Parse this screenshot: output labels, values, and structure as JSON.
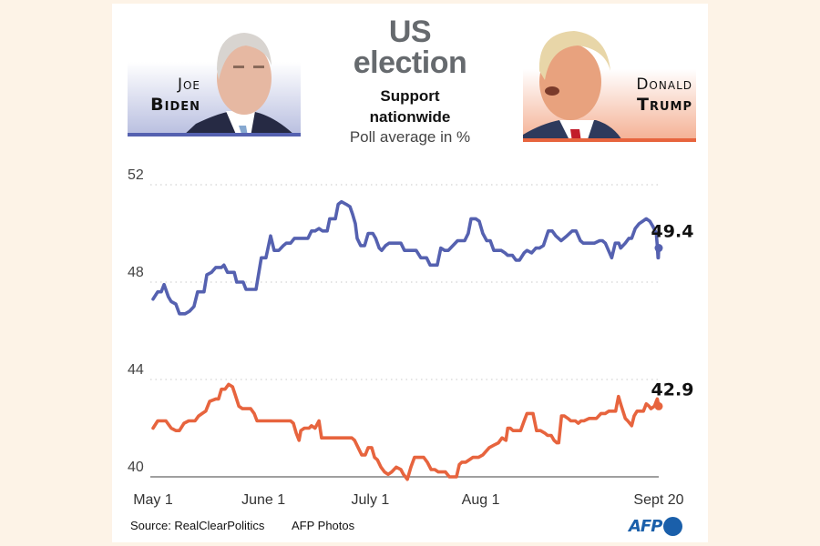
{
  "header": {
    "title_line1": "US",
    "title_line2": "election",
    "subtitle_line1": "Support",
    "subtitle_line2": "nationwide",
    "unit": "Poll average in %"
  },
  "candidates": {
    "biden": {
      "first": "Joe",
      "last": "Biden",
      "color": "#5561b0",
      "photo": "biden-portrait"
    },
    "trump": {
      "first": "Donald",
      "last": "Trump",
      "color": "#e7643e",
      "photo": "trump-portrait"
    }
  },
  "footer": {
    "source": "Source: RealClearPolitics",
    "photos": "AFP Photos",
    "logo": "AFP"
  },
  "chart_data": {
    "type": "line",
    "title": "US election — Support nationwide",
    "subtitle": "Poll average in %",
    "xlabel": "",
    "ylabel": "Poll average in %",
    "x_unit": "days since May 1",
    "x_range": [
      0,
      142
    ],
    "x_ticks": [
      {
        "day": 0,
        "label": "May 1"
      },
      {
        "day": 31,
        "label": "June 1"
      },
      {
        "day": 61,
        "label": "July 1"
      },
      {
        "day": 92,
        "label": "Aug 1"
      },
      {
        "day": 142,
        "label": "Sept 20"
      }
    ],
    "axis_breaks": true,
    "panels": [
      {
        "name": "Biden",
        "ylim": [
          46.5,
          52
        ],
        "y_ticks": [
          52,
          48
        ]
      },
      {
        "name": "Trump",
        "ylim": [
          40,
          44.5
        ],
        "y_ticks": [
          44,
          40
        ]
      }
    ],
    "grid": "dotted horizontal at ticks",
    "series": [
      {
        "name": "Joe Biden",
        "color": "#5561b0",
        "end_label": "49.4",
        "points": [
          [
            0,
            47.3
          ],
          [
            1.3,
            47.6
          ],
          [
            2.3,
            47.6
          ],
          [
            3.1,
            47.9
          ],
          [
            4.3,
            47.4
          ],
          [
            5.1,
            47.2
          ],
          [
            6.4,
            47.1
          ],
          [
            7.4,
            46.7
          ],
          [
            9.0,
            46.7
          ],
          [
            10.2,
            46.8
          ],
          [
            11.5,
            47.0
          ],
          [
            12.5,
            47.6
          ],
          [
            14.3,
            47.6
          ],
          [
            15.1,
            48.3
          ],
          [
            16.4,
            48.4
          ],
          [
            17.6,
            48.6
          ],
          [
            19.2,
            48.6
          ],
          [
            19.9,
            48.7
          ],
          [
            20.9,
            48.4
          ],
          [
            22.8,
            48.4
          ],
          [
            23.5,
            48.0
          ],
          [
            25.3,
            48.0
          ],
          [
            26.1,
            47.7
          ],
          [
            28.9,
            47.7
          ],
          [
            30.4,
            49.0
          ],
          [
            31.7,
            49.0
          ],
          [
            33.0,
            49.9
          ],
          [
            34.0,
            49.3
          ],
          [
            35.3,
            49.3
          ],
          [
            36.6,
            49.5
          ],
          [
            37.4,
            49.6
          ],
          [
            38.6,
            49.6
          ],
          [
            39.7,
            49.8
          ],
          [
            42.5,
            49.8
          ],
          [
            43.5,
            49.8
          ],
          [
            44.5,
            50.1
          ],
          [
            45.5,
            50.1
          ],
          [
            46.6,
            50.2
          ],
          [
            47.6,
            50.1
          ],
          [
            48.9,
            50.1
          ],
          [
            49.6,
            50.6
          ],
          [
            50.4,
            50.6
          ],
          [
            51.2,
            50.6
          ],
          [
            52.0,
            51.2
          ],
          [
            52.9,
            51.3
          ],
          [
            54.2,
            51.2
          ],
          [
            55.3,
            51.1
          ],
          [
            56.0,
            50.8
          ],
          [
            56.8,
            50.4
          ],
          [
            57.3,
            49.8
          ],
          [
            58.3,
            49.5
          ],
          [
            59.4,
            49.5
          ],
          [
            60.4,
            50.0
          ],
          [
            61.7,
            50.0
          ],
          [
            62.5,
            49.8
          ],
          [
            63.5,
            49.4
          ],
          [
            64.2,
            49.3
          ],
          [
            65.3,
            49.5
          ],
          [
            66.3,
            49.6
          ],
          [
            68.3,
            49.6
          ],
          [
            69.6,
            49.6
          ],
          [
            70.6,
            49.3
          ],
          [
            71.6,
            49.3
          ],
          [
            73.9,
            49.3
          ],
          [
            75.2,
            49.0
          ],
          [
            76.8,
            49.0
          ],
          [
            77.8,
            48.7
          ],
          [
            79.8,
            48.7
          ],
          [
            80.8,
            49.4
          ],
          [
            81.9,
            49.3
          ],
          [
            82.9,
            49.3
          ],
          [
            84.2,
            49.5
          ],
          [
            85.5,
            49.7
          ],
          [
            87.5,
            49.7
          ],
          [
            88.5,
            50.0
          ],
          [
            89.3,
            50.6
          ],
          [
            90.6,
            50.6
          ],
          [
            91.6,
            50.5
          ],
          [
            92.6,
            50.0
          ],
          [
            93.7,
            49.7
          ],
          [
            94.7,
            49.7
          ],
          [
            95.7,
            49.3
          ],
          [
            97.8,
            49.3
          ],
          [
            98.8,
            49.2
          ],
          [
            99.6,
            49.1
          ],
          [
            100.9,
            49.1
          ],
          [
            101.9,
            48.9
          ],
          [
            102.9,
            48.9
          ],
          [
            104.2,
            49.2
          ],
          [
            105.0,
            49.3
          ],
          [
            106.3,
            49.2
          ],
          [
            107.5,
            49.4
          ],
          [
            108.5,
            49.4
          ],
          [
            109.6,
            49.5
          ],
          [
            111.0,
            50.1
          ],
          [
            112.1,
            50.1
          ],
          [
            113.1,
            49.9
          ],
          [
            114.6,
            49.7
          ],
          [
            116.2,
            49.9
          ],
          [
            117.7,
            50.1
          ],
          [
            118.8,
            50.1
          ],
          [
            120.0,
            49.7
          ],
          [
            120.8,
            49.6
          ],
          [
            123.9,
            49.6
          ],
          [
            125.4,
            49.7
          ],
          [
            126.2,
            49.7
          ],
          [
            127.0,
            49.6
          ],
          [
            128.8,
            49.0
          ],
          [
            128.8,
            49.0
          ],
          [
            129.8,
            49.6
          ],
          [
            130.8,
            49.6
          ],
          [
            131.3,
            49.4
          ],
          [
            132.6,
            49.6
          ],
          [
            133.6,
            49.8
          ],
          [
            134.4,
            49.8
          ],
          [
            135.4,
            50.2
          ],
          [
            136.5,
            50.4
          ],
          [
            137.5,
            50.5
          ],
          [
            138.5,
            50.6
          ],
          [
            139.5,
            50.5
          ],
          [
            140.3,
            50.3
          ],
          [
            141.0,
            50.1
          ],
          [
            141.3,
            50.0
          ],
          [
            141.6,
            49.5
          ],
          [
            141.8,
            49.0
          ],
          [
            141.9,
            49.0
          ],
          [
            142.0,
            49.4
          ]
        ]
      },
      {
        "name": "Donald Trump",
        "color": "#e7643e",
        "end_label": "42.9",
        "points": [
          [
            0,
            42.0
          ],
          [
            1.3,
            42.3
          ],
          [
            2.3,
            42.3
          ],
          [
            3.6,
            42.3
          ],
          [
            5.1,
            42.0
          ],
          [
            6.4,
            41.9
          ],
          [
            7.4,
            41.9
          ],
          [
            8.7,
            42.2
          ],
          [
            10.0,
            42.3
          ],
          [
            11.8,
            42.3
          ],
          [
            12.8,
            42.5
          ],
          [
            13.8,
            42.6
          ],
          [
            14.8,
            42.7
          ],
          [
            15.9,
            43.1
          ],
          [
            17.6,
            43.2
          ],
          [
            18.4,
            43.2
          ],
          [
            19.2,
            43.6
          ],
          [
            20.2,
            43.6
          ],
          [
            21.2,
            43.8
          ],
          [
            22.3,
            43.7
          ],
          [
            23.0,
            43.4
          ],
          [
            24.1,
            42.9
          ],
          [
            25.1,
            42.8
          ],
          [
            26.4,
            42.8
          ],
          [
            27.4,
            42.8
          ],
          [
            28.4,
            42.6
          ],
          [
            29.2,
            42.3
          ],
          [
            33.0,
            42.3
          ],
          [
            37.6,
            42.3
          ],
          [
            38.6,
            42.3
          ],
          [
            39.4,
            42.2
          ],
          [
            40.2,
            41.8
          ],
          [
            41.0,
            41.5
          ],
          [
            41.5,
            41.9
          ],
          [
            42.5,
            42.0
          ],
          [
            43.8,
            42.0
          ],
          [
            44.5,
            42.1
          ],
          [
            45.5,
            42.0
          ],
          [
            46.6,
            42.3
          ],
          [
            47.3,
            41.6
          ],
          [
            48.1,
            41.6
          ],
          [
            49.9,
            41.6
          ],
          [
            55.8,
            41.6
          ],
          [
            56.6,
            41.5
          ],
          [
            57.6,
            41.2
          ],
          [
            58.6,
            40.9
          ],
          [
            59.6,
            40.9
          ],
          [
            60.4,
            41.2
          ],
          [
            61.4,
            41.2
          ],
          [
            62.2,
            40.8
          ],
          [
            63.0,
            40.7
          ],
          [
            64.0,
            40.4
          ],
          [
            65.0,
            40.2
          ],
          [
            66.0,
            40.1
          ],
          [
            67.0,
            40.2
          ],
          [
            68.3,
            40.4
          ],
          [
            69.6,
            40.3
          ],
          [
            70.3,
            40.1
          ],
          [
            71.4,
            39.9
          ],
          [
            72.4,
            40.4
          ],
          [
            73.4,
            40.8
          ],
          [
            74.4,
            40.8
          ],
          [
            76.0,
            40.8
          ],
          [
            77.0,
            40.6
          ],
          [
            78.1,
            40.3
          ],
          [
            79.1,
            40.3
          ],
          [
            80.1,
            40.2
          ],
          [
            81.1,
            40.2
          ],
          [
            82.1,
            40.2
          ],
          [
            83.2,
            40.0
          ],
          [
            84.2,
            40.0
          ],
          [
            85.2,
            40.0
          ],
          [
            86.0,
            40.5
          ],
          [
            86.7,
            40.6
          ],
          [
            87.8,
            40.6
          ],
          [
            88.8,
            40.7
          ],
          [
            89.8,
            40.8
          ],
          [
            91.4,
            40.8
          ],
          [
            92.6,
            40.9
          ],
          [
            94.4,
            41.2
          ],
          [
            95.7,
            41.3
          ],
          [
            97.0,
            41.4
          ],
          [
            98.0,
            41.6
          ],
          [
            99.1,
            41.5
          ],
          [
            99.6,
            42.0
          ],
          [
            100.3,
            42.0
          ],
          [
            101.1,
            41.9
          ],
          [
            103.2,
            41.9
          ],
          [
            104.2,
            42.3
          ],
          [
            105.0,
            42.6
          ],
          [
            106.7,
            42.6
          ],
          [
            107.7,
            41.9
          ],
          [
            108.8,
            41.9
          ],
          [
            110.0,
            41.8
          ],
          [
            110.8,
            41.7
          ],
          [
            111.8,
            41.7
          ],
          [
            112.6,
            41.5
          ],
          [
            113.4,
            41.4
          ],
          [
            113.9,
            41.4
          ],
          [
            114.7,
            42.5
          ],
          [
            115.5,
            42.5
          ],
          [
            116.5,
            42.4
          ],
          [
            117.3,
            42.3
          ],
          [
            118.6,
            42.3
          ],
          [
            119.4,
            42.2
          ],
          [
            120.2,
            42.3
          ],
          [
            121.0,
            42.3
          ],
          [
            122.5,
            42.4
          ],
          [
            123.5,
            42.4
          ],
          [
            124.5,
            42.4
          ],
          [
            125.8,
            42.6
          ],
          [
            127.0,
            42.6
          ],
          [
            128.0,
            42.7
          ],
          [
            129.1,
            42.7
          ],
          [
            129.9,
            42.7
          ],
          [
            130.7,
            43.3
          ],
          [
            131.5,
            42.9
          ],
          [
            132.6,
            42.4
          ],
          [
            133.3,
            42.3
          ],
          [
            134.4,
            42.1
          ],
          [
            135.1,
            42.5
          ],
          [
            135.9,
            42.7
          ],
          [
            136.7,
            42.7
          ],
          [
            137.7,
            42.7
          ],
          [
            138.5,
            43.0
          ],
          [
            139.3,
            42.9
          ],
          [
            139.8,
            42.8
          ],
          [
            140.8,
            42.9
          ],
          [
            141.3,
            43.1
          ],
          [
            141.6,
            43.2
          ],
          [
            142.0,
            42.9
          ]
        ]
      }
    ]
  }
}
